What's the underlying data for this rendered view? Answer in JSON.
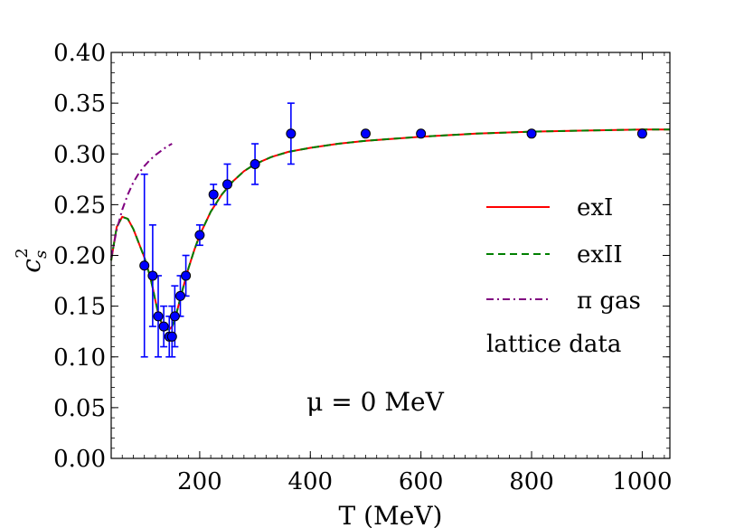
{
  "chart_data": {
    "type": "line",
    "xlabel": "T (MeV)",
    "ylabel": "c",
    "ylabel_sup": "2",
    "ylabel_sub": "s",
    "xlim": [
      40,
      1050
    ],
    "ylim": [
      0.0,
      0.4
    ],
    "x_ticks": [
      200,
      400,
      600,
      800,
      1000
    ],
    "x_tick_labels": [
      "200",
      "400",
      "600",
      "800",
      "1000"
    ],
    "y_ticks": [
      0.0,
      0.05,
      0.1,
      0.15,
      0.2,
      0.25,
      0.3,
      0.35,
      0.4
    ],
    "y_tick_labels": [
      "0.00",
      "0.05",
      "0.10",
      "0.15",
      "0.20",
      "0.25",
      "0.30",
      "0.35",
      "0.40"
    ],
    "annotation": "μ = 0 MeV",
    "legend_placement": "right",
    "series": [
      {
        "name": "exI",
        "style": "solid",
        "color": "#ff0000",
        "x": [
          40,
          50,
          60,
          70,
          80,
          90,
          100,
          110,
          115,
          120,
          125,
          130,
          135,
          140,
          145,
          150,
          155,
          160,
          170,
          180,
          190,
          200,
          220,
          240,
          260,
          280,
          300,
          330,
          360,
          400,
          450,
          500,
          600,
          700,
          800,
          900,
          1000,
          1050
        ],
        "y": [
          0.195,
          0.228,
          0.238,
          0.236,
          0.226,
          0.212,
          0.198,
          0.18,
          0.168,
          0.155,
          0.143,
          0.135,
          0.13,
          0.127,
          0.127,
          0.13,
          0.137,
          0.147,
          0.168,
          0.188,
          0.205,
          0.22,
          0.243,
          0.26,
          0.273,
          0.283,
          0.29,
          0.297,
          0.302,
          0.306,
          0.31,
          0.313,
          0.317,
          0.32,
          0.322,
          0.323,
          0.324,
          0.324
        ]
      },
      {
        "name": "exII",
        "style": "dashed",
        "color": "#008000",
        "x": [
          40,
          50,
          60,
          70,
          80,
          90,
          100,
          110,
          115,
          120,
          125,
          130,
          135,
          140,
          145,
          150,
          155,
          160,
          170,
          180,
          190,
          200,
          220,
          240,
          260,
          280,
          300,
          330,
          360,
          400,
          450,
          500,
          600,
          700,
          800,
          900,
          1000,
          1050
        ],
        "y": [
          0.195,
          0.228,
          0.238,
          0.236,
          0.226,
          0.212,
          0.198,
          0.18,
          0.168,
          0.155,
          0.143,
          0.135,
          0.13,
          0.127,
          0.127,
          0.13,
          0.137,
          0.147,
          0.168,
          0.188,
          0.205,
          0.22,
          0.243,
          0.26,
          0.273,
          0.283,
          0.29,
          0.297,
          0.302,
          0.306,
          0.31,
          0.313,
          0.317,
          0.32,
          0.322,
          0.323,
          0.324,
          0.324
        ]
      },
      {
        "name": "π gas",
        "style": "dashdot",
        "color": "#800080",
        "x": [
          40,
          50,
          60,
          70,
          80,
          90,
          100,
          110,
          120,
          130,
          140,
          150
        ],
        "y": [
          0.198,
          0.225,
          0.245,
          0.26,
          0.272,
          0.281,
          0.288,
          0.294,
          0.299,
          0.303,
          0.307,
          0.31
        ]
      }
    ],
    "lattice_data": {
      "name": "lattice data",
      "color": "#0000ff",
      "points": [
        {
          "x": 100,
          "y": 0.19,
          "ylo": 0.1,
          "yhi": 0.28
        },
        {
          "x": 115,
          "y": 0.18,
          "ylo": 0.13,
          "yhi": 0.23
        },
        {
          "x": 125,
          "y": 0.14,
          "ylo": 0.1,
          "yhi": 0.18
        },
        {
          "x": 135,
          "y": 0.13,
          "ylo": 0.11,
          "yhi": 0.15
        },
        {
          "x": 145,
          "y": 0.12,
          "ylo": 0.1,
          "yhi": 0.14
        },
        {
          "x": 150,
          "y": 0.12,
          "ylo": 0.1,
          "yhi": 0.15
        },
        {
          "x": 155,
          "y": 0.14,
          "ylo": 0.11,
          "yhi": 0.17
        },
        {
          "x": 165,
          "y": 0.16,
          "ylo": 0.14,
          "yhi": 0.18
        },
        {
          "x": 175,
          "y": 0.18,
          "ylo": 0.16,
          "yhi": 0.2
        },
        {
          "x": 200,
          "y": 0.22,
          "ylo": 0.21,
          "yhi": 0.23
        },
        {
          "x": 225,
          "y": 0.26,
          "ylo": 0.25,
          "yhi": 0.27
        },
        {
          "x": 250,
          "y": 0.27,
          "ylo": 0.25,
          "yhi": 0.29
        },
        {
          "x": 300,
          "y": 0.29,
          "ylo": 0.27,
          "yhi": 0.31
        },
        {
          "x": 365,
          "y": 0.32,
          "ylo": 0.29,
          "yhi": 0.35
        },
        {
          "x": 500,
          "y": 0.32,
          "ylo": 0.32,
          "yhi": 0.32
        },
        {
          "x": 600,
          "y": 0.32,
          "ylo": 0.32,
          "yhi": 0.32
        },
        {
          "x": 800,
          "y": 0.32,
          "ylo": 0.32,
          "yhi": 0.32
        },
        {
          "x": 1000,
          "y": 0.32,
          "ylo": 0.32,
          "yhi": 0.32
        }
      ]
    }
  }
}
